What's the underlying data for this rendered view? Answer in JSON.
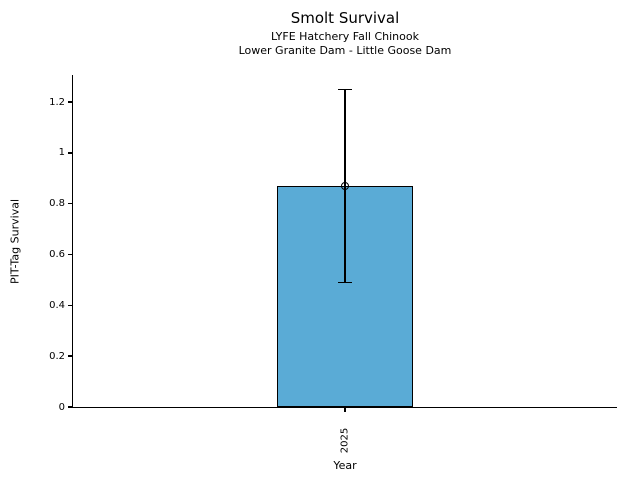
{
  "chart_data": {
    "type": "bar",
    "title": "Smolt Survival",
    "subtitle1": "LYFE Hatchery Fall Chinook",
    "subtitle2": "Lower Granite Dam - Little Goose Dam",
    "xlabel": "Year",
    "ylabel": "PIT-Tag Survival",
    "categories": [
      "2025"
    ],
    "values": [
      0.87
    ],
    "error_low": [
      0.49
    ],
    "error_high": [
      1.25
    ],
    "ylim": [
      0,
      1.307
    ],
    "yticks": [
      0,
      0.2,
      0.4,
      0.6,
      0.8,
      1,
      1.2
    ],
    "ytick_labels": [
      "0",
      "0.2",
      "0.4",
      "0.6",
      "0.8",
      "1",
      "1.2"
    ],
    "xtick_rotation": 90,
    "marker": "open-circle",
    "grid": false,
    "legend": false,
    "colors": {
      "bar_fill": "#5AABD6",
      "bar_edge": "#000000",
      "error_bar": "#000000",
      "text": "#000000",
      "background": "#ffffff"
    }
  }
}
